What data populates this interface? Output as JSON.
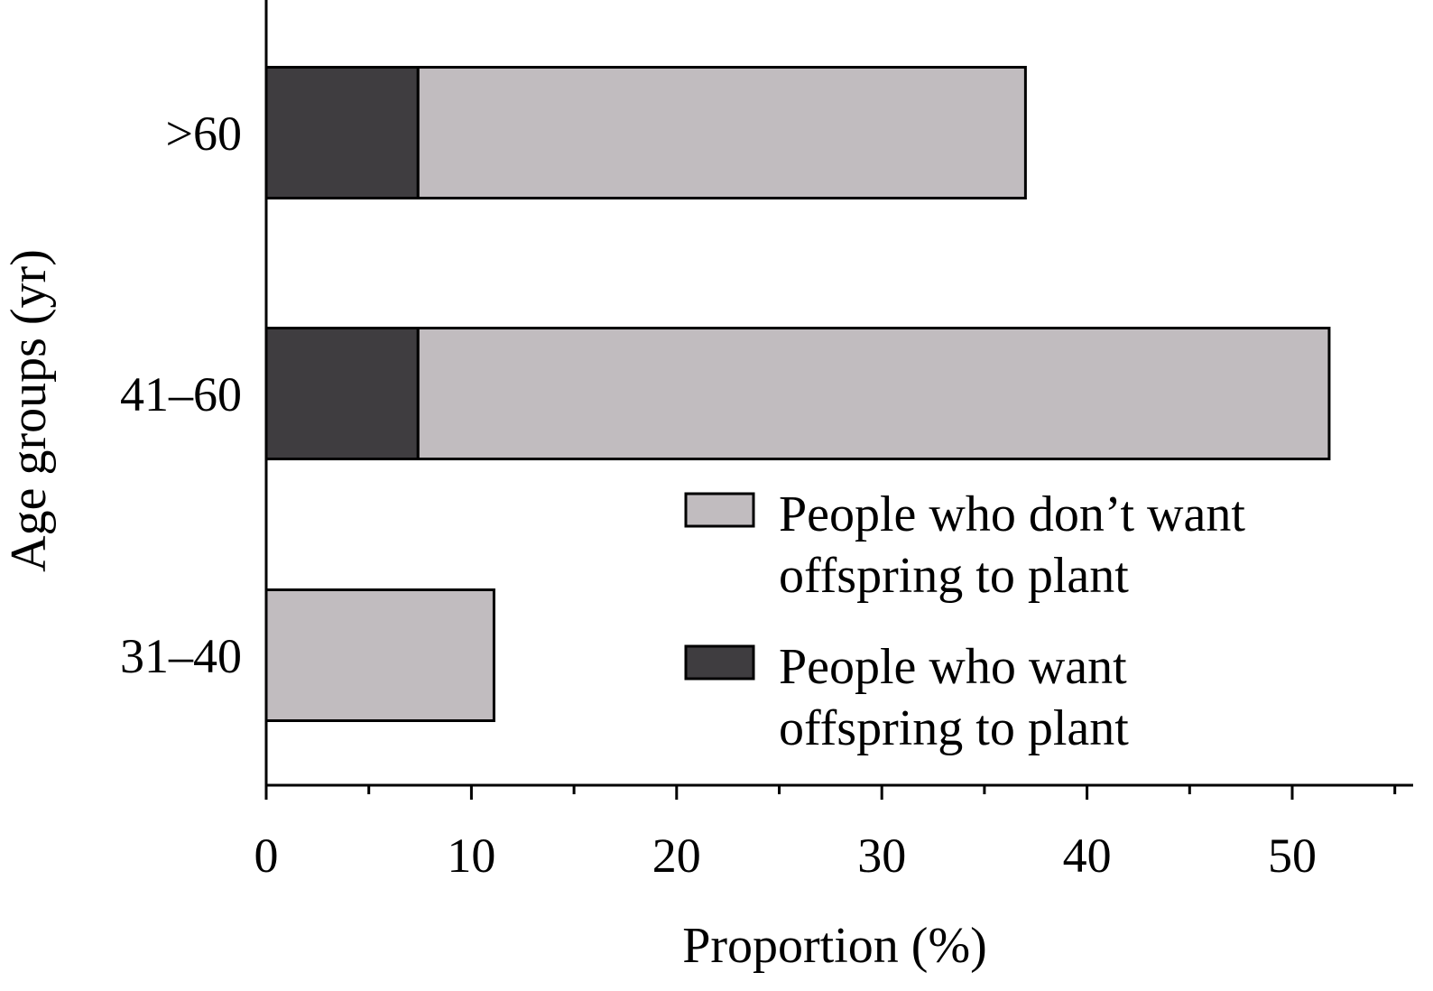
{
  "chart_data": {
    "type": "bar",
    "orientation": "horizontal",
    "stacked": true,
    "categories": [
      ">60",
      "41–60",
      "31–40"
    ],
    "series": [
      {
        "name": "People who want offspring to plant",
        "values": [
          7.4,
          7.4,
          0
        ],
        "color": "#3f3d40"
      },
      {
        "name": "People who don’t want offspring to plant",
        "values": [
          29.6,
          44.4,
          11.1
        ],
        "color": "#c1bcbf"
      }
    ],
    "xlabel": "Proportion (%)",
    "ylabel": "Age groups (yr)",
    "xlim": [
      0,
      55
    ],
    "xticks": [
      0,
      10,
      20,
      30,
      40,
      50
    ],
    "minor_tick_step": 5,
    "grid": false,
    "legend": {
      "placement": "right",
      "entries": [
        {
          "lines": [
            "People who don’t want",
            "offspring to plant"
          ],
          "color": "#c1bcbf"
        },
        {
          "lines": [
            "People who want",
            "offspring to plant"
          ],
          "color": "#3f3d40"
        }
      ]
    }
  }
}
